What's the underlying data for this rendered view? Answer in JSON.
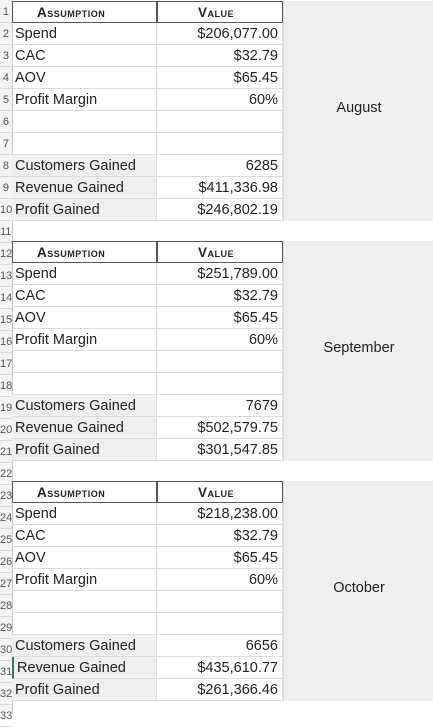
{
  "row_numbers": [
    "1",
    "2",
    "3",
    "4",
    "5",
    "6",
    "7",
    "8",
    "9",
    "10",
    "11",
    "12",
    "13",
    "14",
    "15",
    "16",
    "17",
    "18",
    "19",
    "20",
    "21",
    "22",
    "23",
    "24",
    "25",
    "26",
    "27",
    "28",
    "29",
    "30",
    "31",
    "32",
    "33"
  ],
  "blocks": [
    {
      "month": "August",
      "header_assumption": "Assumption",
      "header_value": "Value",
      "spend_label": "Spend",
      "spend_value": "$206,077.00",
      "cac_label": "CAC",
      "cac_value": "$32.79",
      "aov_label": "AOV",
      "aov_value": "$65.45",
      "margin_label": "Profit Margin",
      "margin_value": "60%",
      "customers_label": "Customers Gained",
      "customers_value": "6285",
      "revenue_label": "Revenue Gained",
      "revenue_value": "$411,336.98",
      "profit_label": "Profit Gained",
      "profit_value": "$246,802.19"
    },
    {
      "month": "September",
      "header_assumption": "Assumption",
      "header_value": "Value",
      "spend_label": "Spend",
      "spend_value": "$251,789.00",
      "cac_label": "CAC",
      "cac_value": "$32.79",
      "aov_label": "AOV",
      "aov_value": "$65.45",
      "margin_label": "Profit Margin",
      "margin_value": "60%",
      "customers_label": "Customers Gained",
      "customers_value": "7679",
      "revenue_label": "Revenue Gained",
      "revenue_value": "$502,579.75",
      "profit_label": "Profit Gained",
      "profit_value": "$301,547.85"
    },
    {
      "month": "October",
      "header_assumption": "Assumption",
      "header_value": "Value",
      "spend_label": "Spend",
      "spend_value": "$218,238.00",
      "cac_label": "CAC",
      "cac_value": "$32.79",
      "aov_label": "AOV",
      "aov_value": "$65.45",
      "margin_label": "Profit Margin",
      "margin_value": "60%",
      "customers_label": "Customers Gained",
      "customers_value": "6656",
      "revenue_label": "Revenue Gained",
      "revenue_value": "$435,610.77",
      "profit_label": "Profit Gained",
      "profit_value": "$261,366.46"
    }
  ]
}
